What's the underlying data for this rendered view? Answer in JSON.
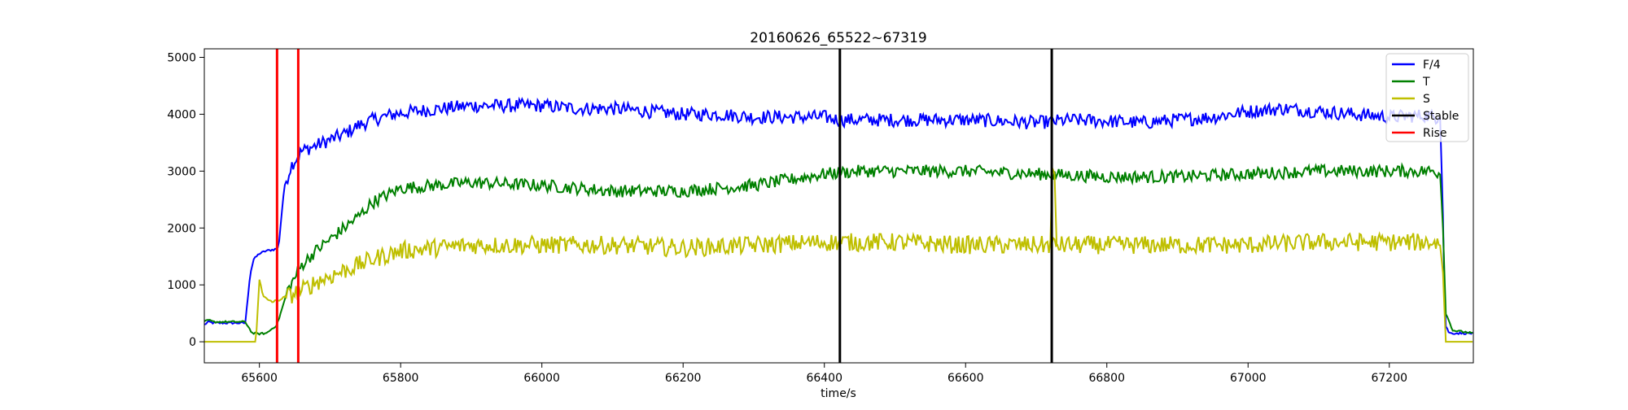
{
  "chart_data": {
    "type": "line",
    "title": "20160626_65522~67319",
    "xlabel": "time/s",
    "ylabel": "",
    "xlim": [
      65522,
      67319
    ],
    "ylim": [
      -370,
      5150
    ],
    "x_ticks": [
      65600,
      65800,
      66000,
      66200,
      66400,
      66600,
      66800,
      67000,
      67200
    ],
    "y_ticks": [
      0,
      1000,
      2000,
      3000,
      4000,
      5000
    ],
    "grid": false,
    "legend_position": "top-right",
    "series": [
      {
        "name": "F/4",
        "color": "#0000ff",
        "noise": 120,
        "x": [
          65522,
          65528,
          65535,
          65560,
          65575,
          65580,
          65587,
          65592,
          65600,
          65610,
          65620,
          65627,
          65635,
          65645,
          65660,
          65680,
          65700,
          65720,
          65740,
          65760,
          65790,
          65820,
          65860,
          65900,
          65950,
          66000,
          66050,
          66100,
          66150,
          66200,
          66250,
          66300,
          66350,
          66400,
          66420,
          66500,
          66550,
          66600,
          66650,
          66700,
          66750,
          66800,
          66850,
          66900,
          66950,
          67000,
          67050,
          67100,
          67150,
          67200,
          67250,
          67265,
          67272,
          67276,
          67279,
          67285,
          67319
        ],
        "y": [
          300,
          350,
          330,
          330,
          330,
          330,
          1200,
          1450,
          1550,
          1600,
          1620,
          1650,
          2700,
          3100,
          3350,
          3450,
          3550,
          3650,
          3800,
          3900,
          4000,
          4050,
          4100,
          4150,
          4150,
          4150,
          4100,
          4100,
          4050,
          4000,
          4000,
          3950,
          3950,
          3950,
          3900,
          3900,
          3900,
          3900,
          3880,
          3850,
          3900,
          3880,
          3850,
          3900,
          3950,
          4050,
          4100,
          4050,
          4000,
          3950,
          3980,
          3950,
          3950,
          2200,
          300,
          150,
          150
        ]
      },
      {
        "name": "T",
        "color": "#008000",
        "noise": 110,
        "x": [
          65522,
          65528,
          65535,
          65560,
          65580,
          65590,
          65600,
          65610,
          65625,
          65640,
          65660,
          65680,
          65700,
          65720,
          65740,
          65760,
          65800,
          65850,
          65900,
          66000,
          66100,
          66200,
          66300,
          66350,
          66400,
          66450,
          66500,
          66600,
          66700,
          66800,
          66900,
          67000,
          67100,
          67200,
          67265,
          67272,
          67276,
          67280,
          67290,
          67319
        ],
        "y": [
          350,
          380,
          350,
          350,
          350,
          150,
          140,
          150,
          300,
          900,
          1350,
          1600,
          1800,
          2000,
          2200,
          2450,
          2700,
          2750,
          2800,
          2750,
          2650,
          2650,
          2750,
          2850,
          2950,
          3000,
          3000,
          3000,
          2950,
          2900,
          2900,
          2950,
          3000,
          3000,
          3000,
          2950,
          2000,
          500,
          200,
          150
        ]
      },
      {
        "name": "S",
        "color": "#bfbf00",
        "noise": 160,
        "x": [
          65522,
          65560,
          65575,
          65585,
          65595,
          65600,
          65605,
          65610,
          65620,
          65640,
          65660,
          65680,
          65700,
          65730,
          65760,
          65800,
          65850,
          65900,
          66000,
          66100,
          66200,
          66300,
          66400,
          66500,
          66600,
          66700,
          66800,
          66900,
          67000,
          67100,
          67200,
          67265,
          67272,
          67276,
          67280,
          67319
        ],
        "y": [
          0,
          0,
          150,
          150,
          0,
          1100,
          800,
          750,
          700,
          800,
          900,
          1050,
          1150,
          1300,
          1450,
          1600,
          1650,
          1700,
          1700,
          1700,
          1650,
          1700,
          1750,
          1750,
          1700,
          1700,
          1700,
          1700,
          1700,
          1750,
          1750,
          1750,
          1700,
          1200,
          0,
          0
        ]
      },
      {
        "name": "Stable",
        "color": "#000000",
        "kind": "vlines",
        "x": [
          66422,
          66722
        ]
      },
      {
        "name": "Rise",
        "color": "#ff0000",
        "kind": "vlines",
        "x": [
          65625,
          65655
        ]
      }
    ],
    "annotations": [
      {
        "series": "S",
        "x": 66723,
        "y": 3050
      }
    ]
  }
}
